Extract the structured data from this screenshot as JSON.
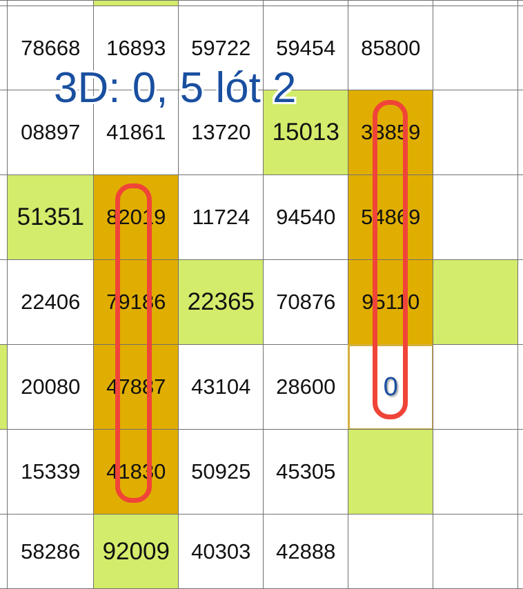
{
  "annotation": {
    "title": "3D: 0, 5 lót 2",
    "loop_color": "#f04438",
    "title_color": "#1a4fa0"
  },
  "colors": {
    "green": "#d3ec6b",
    "orange": "#e0ae00",
    "grid": "#707070"
  },
  "rows": [
    {
      "edge": "",
      "cells": [
        {
          "v": "",
          "h": ""
        },
        {
          "v": "",
          "h": "green"
        },
        {
          "v": "",
          "h": ""
        },
        {
          "v": "",
          "h": ""
        },
        {
          "v": "",
          "h": ""
        },
        {
          "v": "",
          "h": ""
        }
      ]
    },
    {
      "edge": "",
      "cells": [
        {
          "v": "78668",
          "h": ""
        },
        {
          "v": "16893",
          "h": ""
        },
        {
          "v": "59722",
          "h": ""
        },
        {
          "v": "59454",
          "h": ""
        },
        {
          "v": "85800",
          "h": ""
        },
        {
          "v": "",
          "h": ""
        }
      ]
    },
    {
      "edge": "",
      "cells": [
        {
          "v": "08897",
          "h": ""
        },
        {
          "v": "41861",
          "h": ""
        },
        {
          "v": "13720",
          "h": ""
        },
        {
          "v": "15013",
          "h": "green"
        },
        {
          "v": "33859",
          "h": "orange"
        },
        {
          "v": "",
          "h": ""
        }
      ]
    },
    {
      "edge": "",
      "cells": [
        {
          "v": "51351",
          "h": "green"
        },
        {
          "v": "82019",
          "h": "orange"
        },
        {
          "v": "11724",
          "h": ""
        },
        {
          "v": "94540",
          "h": ""
        },
        {
          "v": "54869",
          "h": "orange"
        },
        {
          "v": "",
          "h": ""
        }
      ]
    },
    {
      "edge": "",
      "cells": [
        {
          "v": "22406",
          "h": ""
        },
        {
          "v": "79186",
          "h": "orange"
        },
        {
          "v": "22365",
          "h": "green"
        },
        {
          "v": "70876",
          "h": ""
        },
        {
          "v": "95110",
          "h": "orange"
        },
        {
          "v": "",
          "h": "green"
        }
      ]
    },
    {
      "edge": "green",
      "cells": [
        {
          "v": "20080",
          "h": ""
        },
        {
          "v": "47887",
          "h": "orange"
        },
        {
          "v": "43104",
          "h": ""
        },
        {
          "v": "28600",
          "h": ""
        },
        {
          "v": "0",
          "h": "boxed"
        },
        {
          "v": "",
          "h": ""
        }
      ]
    },
    {
      "edge": "",
      "cells": [
        {
          "v": "15339",
          "h": ""
        },
        {
          "v": "41830",
          "h": "orange"
        },
        {
          "v": "50925",
          "h": ""
        },
        {
          "v": "45305",
          "h": ""
        },
        {
          "v": "",
          "h": "green"
        },
        {
          "v": "",
          "h": ""
        }
      ]
    },
    {
      "edge": "",
      "cells": [
        {
          "v": "58286",
          "h": ""
        },
        {
          "v": "92009",
          "h": "green"
        },
        {
          "v": "40303",
          "h": ""
        },
        {
          "v": "42888",
          "h": ""
        },
        {
          "v": "",
          "h": ""
        },
        {
          "v": "",
          "h": ""
        }
      ]
    }
  ]
}
